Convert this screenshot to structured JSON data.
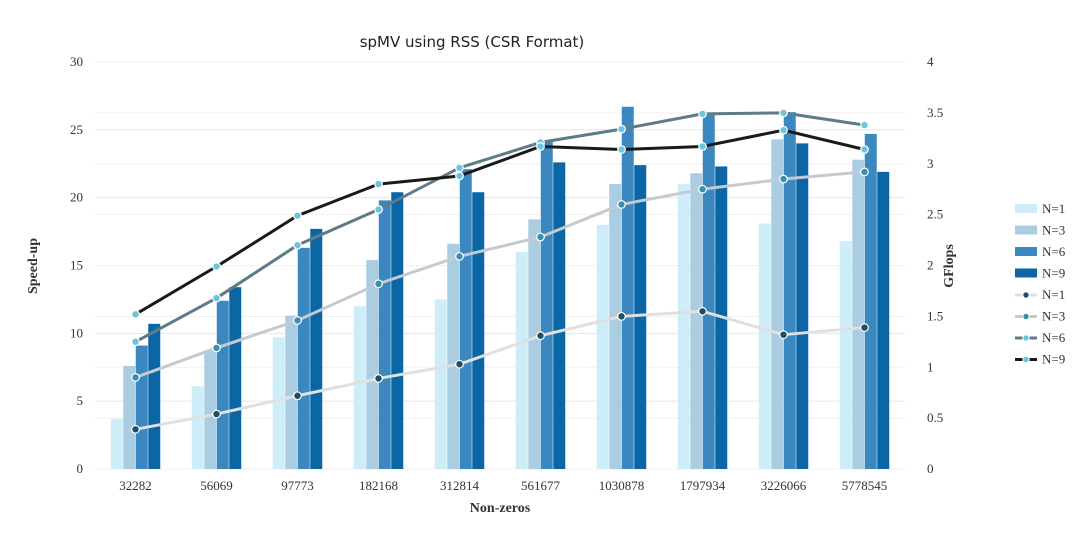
{
  "chart_data": {
    "type": "bar+line",
    "title": "spMV using RSS (CSR Format)",
    "xlabel": "Non-zeros",
    "ylabel": "Speed-up",
    "y2label": "GFlops",
    "ylim": [
      0,
      30
    ],
    "y2lim": [
      0,
      4
    ],
    "yticks": [
      "0",
      "5",
      "10",
      "15",
      "20",
      "25",
      "30"
    ],
    "y2ticks": [
      "0",
      "0.5",
      "1",
      "1.5",
      "2",
      "2.5",
      "3",
      "3.5",
      "4"
    ],
    "grid": true,
    "legend_position": "right",
    "categories": [
      "32282",
      "56069",
      "97773",
      "182168",
      "312814",
      "561677",
      "1030878",
      "1797934",
      "3226066",
      "5778545"
    ],
    "bar_series": [
      {
        "name": "N=1",
        "color": "#cdeef9",
        "values": [
          3.7,
          6.1,
          9.7,
          12.0,
          12.5,
          16.0,
          18.0,
          21.0,
          18.1,
          16.8
        ]
      },
      {
        "name": "N=3",
        "color": "#abcde2",
        "values": [
          7.6,
          8.7,
          11.3,
          15.4,
          16.6,
          18.4,
          21.0,
          21.8,
          24.3,
          22.8
        ]
      },
      {
        "name": "N=6",
        "color": "#3a88bf",
        "values": [
          9.1,
          12.4,
          16.3,
          19.8,
          22.1,
          24.2,
          26.7,
          26.2,
          26.3,
          24.7
        ]
      },
      {
        "name": "N=9",
        "color": "#0a66a5",
        "values": [
          10.7,
          13.4,
          17.7,
          20.4,
          20.4,
          22.6,
          22.4,
          22.3,
          24.0,
          21.9
        ]
      }
    ],
    "line_series": [
      {
        "name": "N=1",
        "color": "#e0e0e0",
        "marker": "#1e4f63",
        "values": [
          0.39,
          0.54,
          0.72,
          0.89,
          1.03,
          1.31,
          1.5,
          1.55,
          1.32,
          1.39
        ]
      },
      {
        "name": "N=3",
        "color": "#c2cbd1",
        "marker": "#3a8fae",
        "values": [
          0.9,
          1.19,
          1.46,
          1.82,
          2.09,
          2.28,
          2.6,
          2.75,
          2.85,
          2.92
        ]
      },
      {
        "name": "N=6",
        "color": "#5e7c88",
        "marker": "#6dc4e0",
        "values": [
          1.25,
          1.68,
          2.2,
          2.55,
          2.96,
          3.21,
          3.34,
          3.49,
          3.5,
          3.38
        ]
      },
      {
        "name": "N=9",
        "color": "#1a1a1a",
        "marker": "#6dc4e0",
        "values": [
          1.52,
          1.99,
          2.49,
          2.8,
          2.88,
          3.17,
          3.14,
          3.17,
          3.33,
          3.14
        ]
      }
    ]
  }
}
